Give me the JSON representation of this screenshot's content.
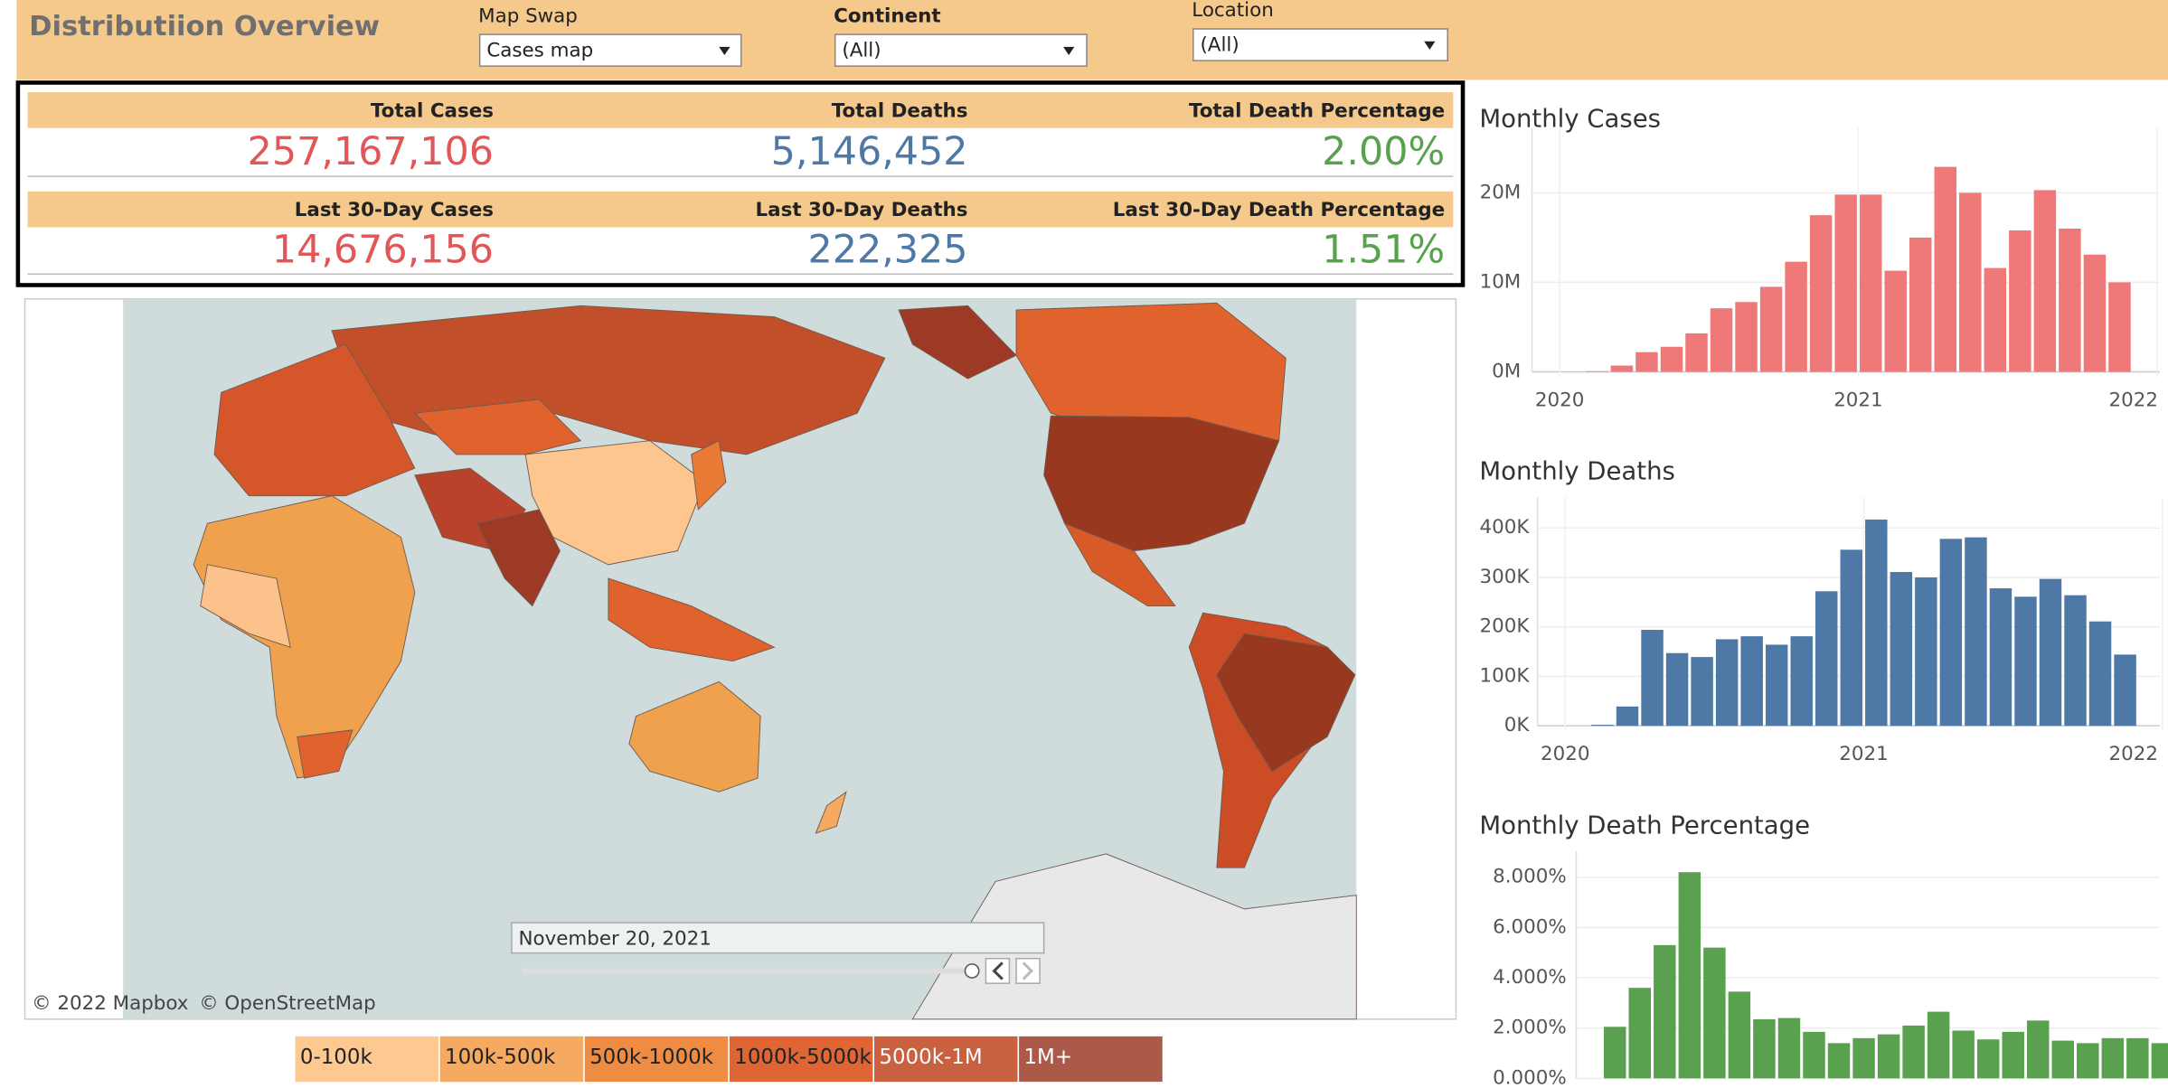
{
  "header": {
    "title": "Distributiion Overview",
    "filters": [
      {
        "label": "Map Swap",
        "value": "Cases map"
      },
      {
        "label": "Continent",
        "value": "(All)"
      },
      {
        "label": "Location",
        "value": "(All)"
      }
    ]
  },
  "kpis": [
    {
      "label": "Total Cases",
      "value": "257,167,106"
    },
    {
      "label": "Total Deaths",
      "value": "5,146,452"
    },
    {
      "label": "Total Death Percentage",
      "value": "2.00%"
    },
    {
      "label": "Last 30-Day Cases",
      "value": "14,676,156"
    },
    {
      "label": "Last 30-Day Deaths",
      "value": "222,325"
    },
    {
      "label": "Last 30-Day Death Percentage",
      "value": "1.51%"
    }
  ],
  "map": {
    "date": "November 20, 2021",
    "attribution": [
      "© 2022 Mapbox",
      "© OpenStreetMap"
    ],
    "legend": [
      "0-100k",
      "100k-500k",
      "500k-1000k",
      "1000k-5000k",
      "5000k-1M",
      "1M+"
    ],
    "legend_colors": [
      "#fdc990",
      "#f6aa61",
      "#ee8c44",
      "#df6534",
      "#c9603f",
      "#ab5a49"
    ]
  },
  "chart_data": [
    {
      "type": "bar",
      "title": "Monthly Cases",
      "color": "#ef7878",
      "values": [
        0.01,
        0.07,
        0.7,
        2.2,
        2.8,
        4.3,
        7.1,
        7.8,
        9.5,
        12.3,
        17.5,
        19.8,
        19.8,
        11.3,
        15,
        22.9,
        20,
        11.6,
        15.8,
        20.3,
        16,
        13.1,
        10
      ],
      "ylim": [
        0,
        26
      ],
      "yticks": [
        {
          "value": 0,
          "label": "0M"
        },
        {
          "value": 10,
          "label": "10M"
        },
        {
          "value": 20,
          "label": "20M"
        }
      ],
      "xlim": [
        2020,
        2022
      ],
      "xticks": [
        2020,
        2021,
        2022
      ],
      "grid": true
    },
    {
      "type": "bar",
      "title": "Monthly Deaths",
      "color": "#4e79a7",
      "values": [
        0,
        2,
        39,
        194,
        147,
        139,
        175,
        181,
        164,
        181,
        272,
        356,
        417,
        311,
        300,
        378,
        381,
        278,
        261,
        297,
        264,
        211,
        144
      ],
      "ylim": [
        0,
        440
      ],
      "yticks": [
        {
          "value": 0,
          "label": "0K"
        },
        {
          "value": 100,
          "label": "100K"
        },
        {
          "value": 200,
          "label": "200K"
        },
        {
          "value": 300,
          "label": "300K"
        },
        {
          "value": 400,
          "label": "400K"
        }
      ],
      "xlim": [
        2020,
        2022
      ],
      "xticks": [
        2020,
        2021,
        2022
      ],
      "grid": true
    },
    {
      "type": "bar",
      "title": "Monthly Death Percentage",
      "color": "#59a14f",
      "values": [
        2.05,
        3.6,
        5.3,
        8.2,
        5.2,
        3.45,
        2.35,
        2.4,
        1.85,
        1.4,
        1.6,
        1.75,
        2.1,
        2.65,
        1.9,
        1.55,
        1.85,
        2.3,
        1.5,
        1.4,
        1.6,
        1.6,
        1.4
      ],
      "ylim": [
        0,
        8.6
      ],
      "yticks": [
        {
          "value": 0,
          "label": "0.000%"
        },
        {
          "value": 2,
          "label": "2.000%"
        },
        {
          "value": 4,
          "label": "4.000%"
        },
        {
          "value": 6,
          "label": "6.000%"
        },
        {
          "value": 8,
          "label": "8.000%"
        }
      ],
      "grid": true
    }
  ]
}
